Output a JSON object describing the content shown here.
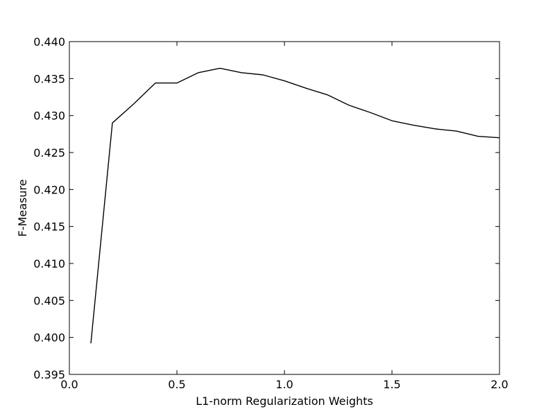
{
  "chart_data": {
    "type": "line",
    "title": "",
    "xlabel": "L1-norm Regularization Weights",
    "ylabel": "F-Measure",
    "xlim": [
      0.0,
      2.0
    ],
    "ylim": [
      0.395,
      0.44
    ],
    "x_ticks": [
      "0.0",
      "0.5",
      "1.0",
      "1.5",
      "2.0"
    ],
    "y_ticks": [
      "0.395",
      "0.400",
      "0.405",
      "0.410",
      "0.415",
      "0.420",
      "0.425",
      "0.430",
      "0.435",
      "0.440"
    ],
    "grid": false,
    "legend": "none",
    "line_color": "#000000",
    "series": [
      {
        "x": [
          0.1,
          0.2,
          0.3,
          0.4,
          0.5,
          0.6,
          0.7,
          0.8,
          0.9,
          1.0,
          1.1,
          1.2,
          1.3,
          1.4,
          1.5,
          1.6,
          1.7,
          1.8,
          1.9,
          2.0
        ],
        "y": [
          0.3992,
          0.429,
          0.4316,
          0.4344,
          0.4344,
          0.4358,
          0.4364,
          0.4358,
          0.4355,
          0.4347,
          0.4337,
          0.4328,
          0.4314,
          0.4304,
          0.4293,
          0.4287,
          0.4282,
          0.4279,
          0.4272,
          0.427
        ]
      }
    ]
  }
}
